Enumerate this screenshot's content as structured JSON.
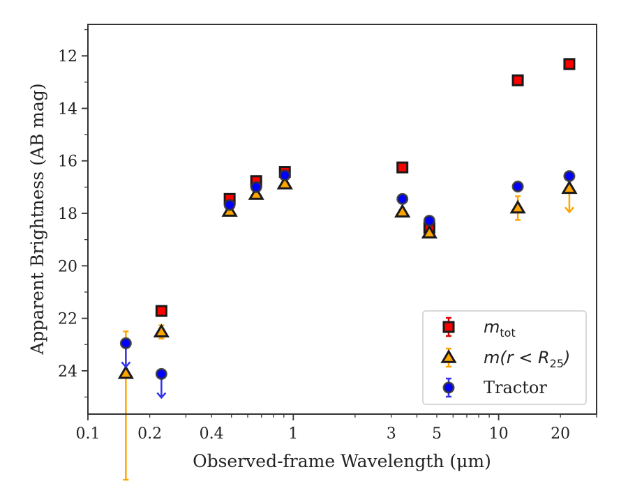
{
  "chart_data": {
    "type": "scatter",
    "title": "",
    "xlabel": "Observed-frame Wavelength (μm)",
    "ylabel": "Apparent Brightness (AB mag)",
    "xscale": "log",
    "xlim": [
      0.1,
      30
    ],
    "ylim": [
      25.65,
      10.8
    ],
    "y_inverted": true,
    "grid": false,
    "legend_position": "lower-right",
    "x_ticks": [
      0.1,
      0.2,
      0.4,
      1,
      3,
      5,
      10,
      20
    ],
    "x_tick_labels": [
      "0.1",
      "0.2",
      "0.4",
      "1",
      "3",
      "5",
      "10",
      "20"
    ],
    "y_ticks": [
      12,
      14,
      16,
      18,
      20,
      22,
      24
    ],
    "y_tick_labels": [
      "12",
      "14",
      "16",
      "18",
      "20",
      "22",
      "24"
    ],
    "series": [
      {
        "key": "mtot",
        "legend_main": "m",
        "legend_sub": "tot",
        "marker": "square",
        "face_color": "#ff0000",
        "edge_color": "#1a1a1a",
        "err_color": "#dd0000",
        "points": [
          {
            "x": 0.228,
            "y": 21.72,
            "err": 0.05
          },
          {
            "x": 0.49,
            "y": 17.45,
            "err": 0.05
          },
          {
            "x": 0.66,
            "y": 16.77,
            "err": 0.05
          },
          {
            "x": 0.91,
            "y": 16.42,
            "err": 0.05
          },
          {
            "x": 3.4,
            "y": 16.25,
            "err": 0.04
          },
          {
            "x": 4.6,
            "y": 18.55,
            "err": 0.25
          },
          {
            "x": 12.4,
            "y": 12.93,
            "err": 0.04
          },
          {
            "x": 22.1,
            "y": 12.31,
            "err": 0.04
          }
        ]
      },
      {
        "key": "mr25",
        "legend_main": "m(r < R",
        "legend_sub": "25",
        "legend_tail": ")",
        "marker": "triangle",
        "face_color": "#ffa500",
        "edge_color": "#1a1a1a",
        "err_color": "#ffa500",
        "points": [
          {
            "x": 0.153,
            "y": 24.1,
            "err_low": 4.05,
            "err_high": 1.6
          },
          {
            "x": 0.228,
            "y": 22.52,
            "err": 0.25
          },
          {
            "x": 0.49,
            "y": 17.92,
            "err": 0.05
          },
          {
            "x": 0.66,
            "y": 17.28,
            "err": 0.05
          },
          {
            "x": 0.91,
            "y": 16.88,
            "err": 0.05
          },
          {
            "x": 3.4,
            "y": 17.95,
            "err": 0.05
          },
          {
            "x": 4.6,
            "y": 18.75,
            "err": 0.1
          },
          {
            "x": 12.4,
            "y": 17.8,
            "err": 0.45
          },
          {
            "x": 22.1,
            "y": 17.05,
            "err": 0.0,
            "upper_limit": true
          }
        ]
      },
      {
        "key": "tractor",
        "legend_main": "Tractor",
        "marker": "circle",
        "face_color": "#0000ff",
        "edge_color": "#333333",
        "err_color": "#3333ee",
        "points": [
          {
            "x": 0.153,
            "y": 22.95,
            "err": 0.0,
            "upper_limit": true
          },
          {
            "x": 0.228,
            "y": 24.12,
            "err": 0.0,
            "upper_limit": true
          },
          {
            "x": 0.49,
            "y": 17.68,
            "err": 0.03
          },
          {
            "x": 0.66,
            "y": 17.0,
            "err": 0.03
          },
          {
            "x": 0.91,
            "y": 16.55,
            "err": 0.03
          },
          {
            "x": 3.4,
            "y": 17.45,
            "err": 0.03
          },
          {
            "x": 4.6,
            "y": 18.28,
            "err": 0.05
          },
          {
            "x": 12.4,
            "y": 16.98,
            "err": 0.05
          },
          {
            "x": 22.1,
            "y": 16.58,
            "err": 0.06
          }
        ]
      }
    ]
  }
}
